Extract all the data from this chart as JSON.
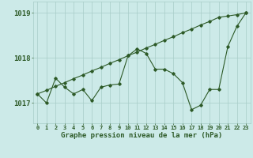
{
  "x": [
    0,
    1,
    2,
    3,
    4,
    5,
    6,
    7,
    8,
    9,
    10,
    11,
    12,
    13,
    14,
    15,
    16,
    17,
    18,
    19,
    20,
    21,
    22,
    23
  ],
  "y_main": [
    1017.2,
    1017.0,
    1017.55,
    1017.35,
    1017.2,
    1017.3,
    1017.05,
    1017.35,
    1017.4,
    1017.42,
    1018.05,
    1018.2,
    1018.1,
    1017.75,
    1017.75,
    1017.65,
    1017.45,
    1016.85,
    1016.95,
    1017.3,
    1017.3,
    1018.25,
    1018.7,
    1019.0
  ],
  "y_trend": [
    1017.2,
    1017.28,
    1017.37,
    1017.45,
    1017.54,
    1017.62,
    1017.71,
    1017.79,
    1017.88,
    1017.96,
    1018.05,
    1018.13,
    1018.22,
    1018.3,
    1018.39,
    1018.47,
    1018.56,
    1018.64,
    1018.73,
    1018.81,
    1018.9,
    1018.93,
    1018.96,
    1019.0
  ],
  "bg_color": "#cceae8",
  "line_color": "#2d5a27",
  "grid_color": "#a8ccc8",
  "ylabel_values": [
    1017,
    1018,
    1019
  ],
  "xlabel_label": "Graphe pression niveau de la mer (hPa)",
  "ylim": [
    1016.55,
    1019.25
  ],
  "xlim": [
    -0.5,
    23.5
  ],
  "marker": "D",
  "markersize": 1.8,
  "linewidth": 0.8
}
